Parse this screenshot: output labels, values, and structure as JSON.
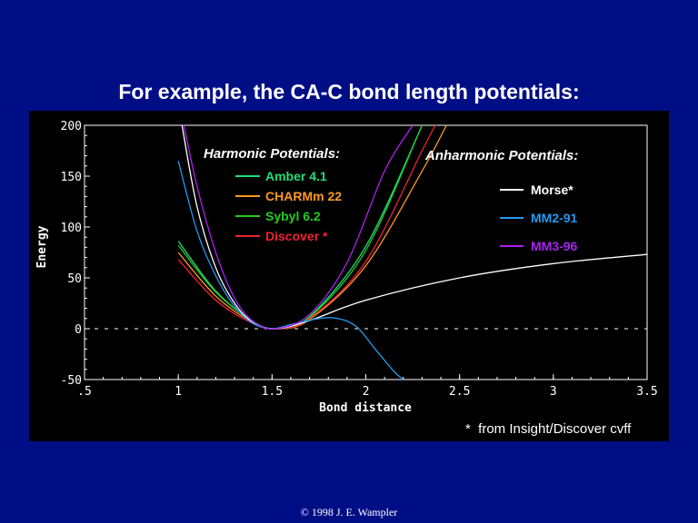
{
  "slide": {
    "title": "For example, the CA-C bond length potentials:",
    "copyright": "© 1998 J. E. Wampler",
    "background_color": "#000e86"
  },
  "chart_data": {
    "type": "line",
    "xlabel": "Bond distance",
    "ylabel": "Energy",
    "xlim": [
      0.5,
      3.5
    ],
    "ylim": [
      -50,
      200
    ],
    "x_ticks": [
      0.5,
      1,
      1.5,
      2,
      2.5,
      3,
      3.5
    ],
    "x_tick_labels": [
      ".5",
      "1",
      "1.5",
      "2",
      "2.5",
      "3",
      "3.5"
    ],
    "y_ticks": [
      -50,
      0,
      50,
      100,
      150,
      200
    ],
    "y_tick_labels": [
      "-50",
      "0",
      "50",
      "100",
      "150",
      "200"
    ],
    "zero_line": true,
    "legend_groups": [
      {
        "title": "Harmonic Potentials:",
        "entries": [
          "Amber 4.1",
          "CHARMm 22",
          "Sybyl 6.2",
          "Discover *"
        ]
      },
      {
        "title": "Anharmonic Potentials:",
        "entries": [
          "Morse*",
          "MM2-91",
          "MM3-96"
        ]
      }
    ],
    "footnote": "*  from Insight/Discover cvff",
    "series": [
      {
        "name": "Amber 4.1",
        "group": "harmonic",
        "color": "#22dd77",
        "x": [
          1.0,
          1.2,
          1.4,
          1.52,
          1.7,
          2.0,
          2.3
        ],
        "y": [
          86,
          37,
          7,
          0,
          12,
          81,
          200
        ]
      },
      {
        "name": "CHARMm 22",
        "group": "harmonic",
        "color": "#ff9922",
        "x": [
          1.0,
          1.2,
          1.4,
          1.53,
          1.7,
          2.0,
          2.3,
          2.43
        ],
        "y": [
          75,
          32,
          6,
          0,
          9,
          62,
          155,
          200
        ]
      },
      {
        "name": "Sybyl 6.2",
        "group": "harmonic",
        "color": "#22cc22",
        "x": [
          1.0,
          1.2,
          1.4,
          1.52,
          1.7,
          2.0,
          2.3
        ],
        "y": [
          82,
          36,
          7,
          0,
          11,
          77,
          200
        ]
      },
      {
        "name": "Discover *",
        "group": "harmonic",
        "color": "#ee2233",
        "x": [
          1.0,
          1.2,
          1.4,
          1.53,
          1.7,
          2.0,
          2.3,
          2.37
        ],
        "y": [
          68,
          28,
          5,
          0,
          10,
          66,
          175,
          200
        ]
      },
      {
        "name": "Morse*",
        "group": "anharmonic",
        "color": "#ffffff",
        "x": [
          1.02,
          1.1,
          1.2,
          1.3,
          1.4,
          1.52,
          1.7,
          2.0,
          2.5,
          3.0,
          3.5
        ],
        "y": [
          200,
          120,
          60,
          25,
          6,
          0,
          8,
          28,
          50,
          64,
          73
        ]
      },
      {
        "name": "MM2-91",
        "group": "anharmonic",
        "color": "#2299ee",
        "x": [
          1.0,
          1.1,
          1.2,
          1.3,
          1.4,
          1.5,
          1.6,
          1.75,
          1.85,
          1.95,
          2.05,
          2.15,
          2.2
        ],
        "y": [
          165,
          96,
          52,
          22,
          5,
          0,
          4,
          10,
          10,
          2,
          -20,
          -42,
          -50
        ]
      },
      {
        "name": "MM3-96",
        "group": "anharmonic",
        "color": "#aa22ee",
        "x": [
          1.03,
          1.1,
          1.2,
          1.3,
          1.4,
          1.52,
          1.7,
          1.9,
          2.1,
          2.25
        ],
        "y": [
          200,
          140,
          75,
          30,
          7,
          0,
          14,
          65,
          155,
          200
        ]
      }
    ]
  }
}
